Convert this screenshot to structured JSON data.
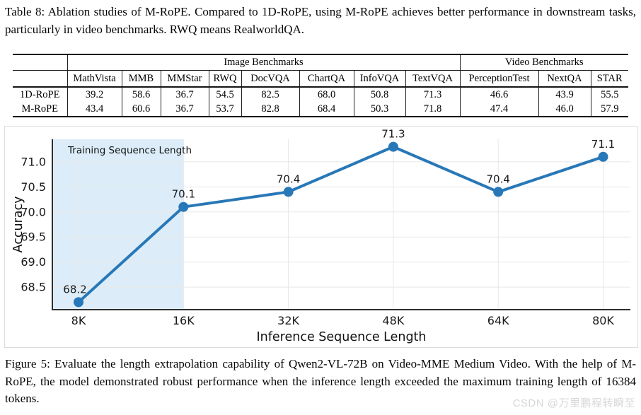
{
  "table_caption": "Table 8: Ablation studies of M-RoPE. Compared to 1D-RoPE, using M-RoPE achieves better performance in downstream tasks, particularly in video benchmarks. RWQ means RealworldQA.",
  "table": {
    "group_headers": [
      {
        "label": "Image Benchmarks",
        "span": 8
      },
      {
        "label": "Video Benchmarks",
        "span": 3
      }
    ],
    "columns": [
      "MathVista",
      "MMB",
      "MMStar",
      "RWQ",
      "DocVQA",
      "ChartQA",
      "InfoVQA",
      "TextVQA",
      "PerceptionTest",
      "NextQA",
      "STAR"
    ],
    "rows": [
      {
        "label": "1D-RoPE",
        "values": [
          "39.2",
          "58.6",
          "36.7",
          "54.5",
          "82.5",
          "68.0",
          "50.8",
          "71.3",
          "46.6",
          "43.9",
          "55.5"
        ],
        "bold": [
          false,
          false,
          true,
          true,
          false,
          false,
          true,
          false,
          false,
          false,
          false
        ]
      },
      {
        "label": "M-RoPE",
        "values": [
          "43.4",
          "60.6",
          "36.7",
          "53.7",
          "82.8",
          "68.4",
          "50.3",
          "71.8",
          "47.4",
          "46.0",
          "57.9"
        ],
        "bold": [
          true,
          true,
          true,
          false,
          true,
          true,
          false,
          true,
          true,
          true,
          true
        ]
      }
    ]
  },
  "chart_data": {
    "type": "line",
    "categories": [
      "8K",
      "16K",
      "32K",
      "48K",
      "64K",
      "80K"
    ],
    "values": [
      68.2,
      70.1,
      70.4,
      71.3,
      70.4,
      71.1
    ],
    "point_labels": [
      "68.2",
      "70.1",
      "70.4",
      "71.3",
      "70.4",
      "71.1"
    ],
    "title": "",
    "xlabel": "Inference Sequence Length",
    "ylabel": "Accuracy",
    "yticks": [
      68.5,
      69.0,
      69.5,
      70.0,
      70.5,
      71.0
    ],
    "ytick_labels": [
      "68.5",
      "69.0",
      "69.5",
      "70.0",
      "70.5",
      "71.0"
    ],
    "ylim": [
      68.05,
      71.45
    ],
    "grid": true,
    "legend_position": "none",
    "line_color": "#2878b8",
    "shaded_region": {
      "label": "Training Sequence Length",
      "from": "axis-start",
      "to_category": "16K",
      "color": "#dcedf9"
    }
  },
  "figure_caption": "Figure 5: Evaluate the length extrapolation capability of Qwen2-VL-72B on Video-MME Medium Video. With the help of M-RoPE, the model demonstrated robust performance when the inference length exceeded the maximum training length of 16384 tokens.",
  "watermark": "CSDN @万里鹏程转瞬至"
}
